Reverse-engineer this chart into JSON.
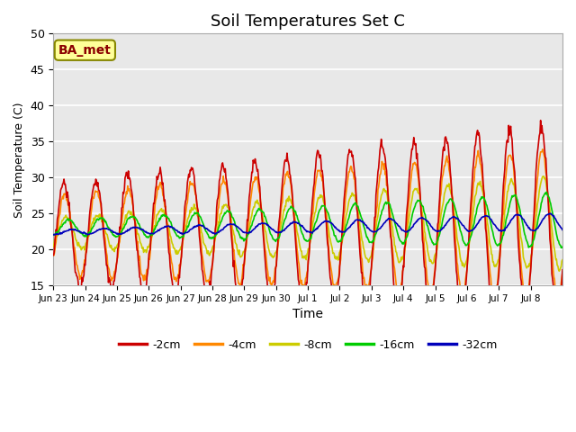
{
  "title": "Soil Temperatures Set C",
  "xlabel": "Time",
  "ylabel": "Soil Temperature (C)",
  "ylim": [
    15,
    50
  ],
  "background_color": "#ffffff",
  "plot_bg_color": "#e8e8e8",
  "annotation": "BA_met",
  "annotation_fg": "#8B0000",
  "annotation_bg": "#ffff99",
  "annotation_border": "#888800",
  "legend_labels": [
    "-2cm",
    "-4cm",
    "-8cm",
    "-16cm",
    "-32cm"
  ],
  "line_colors": [
    "#cc0000",
    "#ff8800",
    "#cccc00",
    "#00cc00",
    "#0000bb"
  ],
  "xtick_labels": [
    "Jun 23",
    "Jun 24",
    "Jun 25",
    "Jun 26",
    "Jun 27",
    "Jun 28",
    "Jun 29",
    "Jun 30",
    "Jul 1",
    "Jul 2",
    "Jul 3",
    "Jul 4",
    "Jul 5",
    "Jul 6",
    "Jul 7",
    "Jul 8"
  ],
  "grid_color": "#ffffff",
  "title_fontsize": 13,
  "yticks": [
    15,
    20,
    25,
    30,
    35,
    40,
    45,
    50
  ],
  "n_days": 16
}
